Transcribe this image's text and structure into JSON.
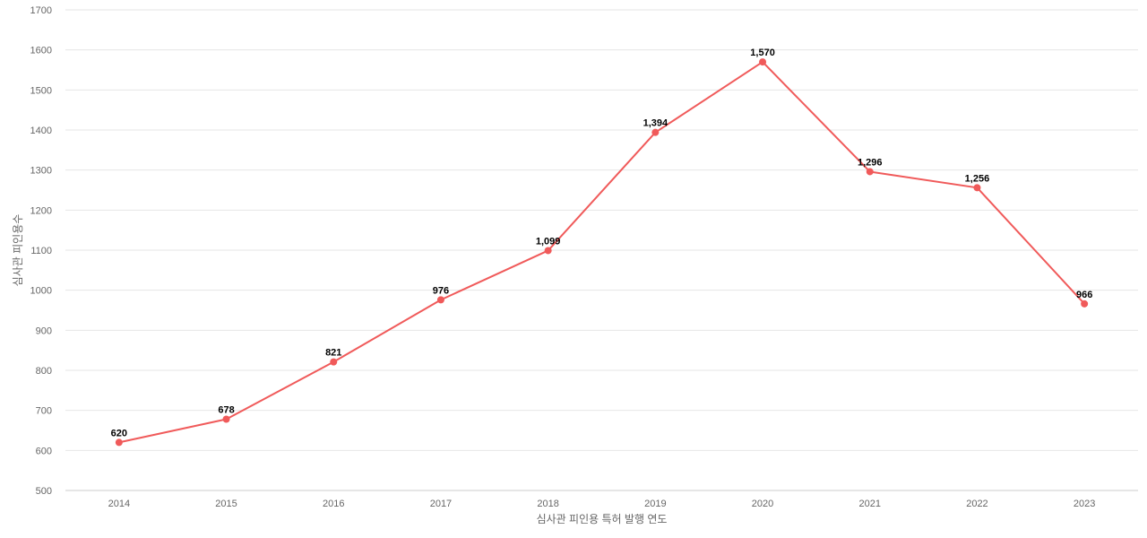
{
  "chart_data": {
    "type": "line",
    "title": "",
    "xlabel": "심사관 피인용 특허 발행 연도",
    "ylabel": "심사관 피인용수",
    "categories": [
      "2014",
      "2015",
      "2016",
      "2017",
      "2018",
      "2019",
      "2020",
      "2021",
      "2022",
      "2023"
    ],
    "series": [
      {
        "values": [
          620,
          678,
          821,
          976,
          1099,
          1394,
          1570,
          1296,
          1256,
          966
        ],
        "data_labels": [
          "620",
          "678",
          "821",
          "976",
          "1,099",
          "1,394",
          "1,570",
          "1,296",
          "1,256",
          "966"
        ],
        "color": "#f05a5a"
      }
    ],
    "ylim": [
      500,
      1700
    ],
    "yticks": [
      "500",
      "600",
      "700",
      "800",
      "900",
      "1000",
      "1100",
      "1200",
      "1300",
      "1400",
      "1500",
      "1600",
      "1700"
    ],
    "grid": true,
    "legend": "none"
  }
}
